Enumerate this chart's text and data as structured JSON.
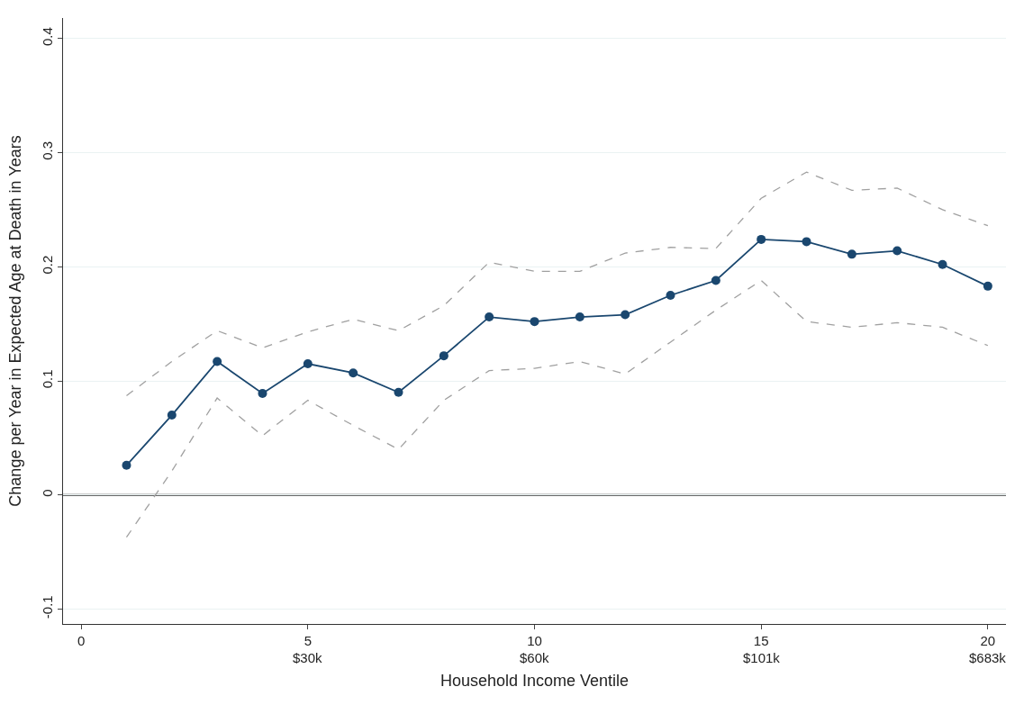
{
  "chart_data": {
    "type": "line",
    "xlabel": "Household Income Ventile",
    "ylabel": "Change per Year in Expected Age at Death in Years",
    "x": [
      1,
      2,
      3,
      4,
      5,
      6,
      7,
      8,
      9,
      10,
      11,
      12,
      13,
      14,
      15,
      16,
      17,
      18,
      19,
      20
    ],
    "series": [
      {
        "color": "#a0a0a0",
        "marker": "none",
        "line_style": "dashed",
        "values": [
          0.087,
          0.117,
          0.144,
          0.129,
          0.143,
          0.154,
          0.144,
          0.166,
          0.204,
          0.196,
          0.196,
          0.212,
          0.217,
          0.216,
          0.26,
          0.283,
          0.267,
          0.269,
          0.25,
          0.236
        ]
      },
      {
        "color": "#a0a0a0",
        "marker": "none",
        "line_style": "dashed",
        "values": [
          -0.037,
          0.021,
          0.085,
          0.052,
          0.083,
          0.061,
          0.04,
          0.083,
          0.109,
          0.111,
          0.117,
          0.106,
          0.134,
          0.162,
          0.188,
          0.152,
          0.147,
          0.151,
          0.147,
          0.131
        ]
      },
      {
        "color": "#1a476f",
        "marker": "circle",
        "line_style": "solid",
        "values": [
          0.026,
          0.07,
          0.117,
          0.089,
          0.115,
          0.107,
          0.09,
          0.122,
          0.156,
          0.152,
          0.156,
          0.158,
          0.175,
          0.188,
          0.224,
          0.222,
          0.211,
          0.214,
          0.202,
          0.183
        ]
      }
    ],
    "xlim": [
      -0.4,
      20.4
    ],
    "ylim": [
      -0.113,
      0.418
    ],
    "xticks": [
      0,
      5,
      10,
      15,
      20
    ],
    "annotations": [
      "$30k",
      "$60k",
      "$101k",
      "$683k"
    ],
    "yticks": [
      -0.1,
      0,
      0.1,
      0.2,
      0.3,
      0.4
    ],
    "ref_lines": [
      {
        "axis": "y",
        "value": 0,
        "color": "#333333"
      }
    ],
    "grid": "y"
  }
}
